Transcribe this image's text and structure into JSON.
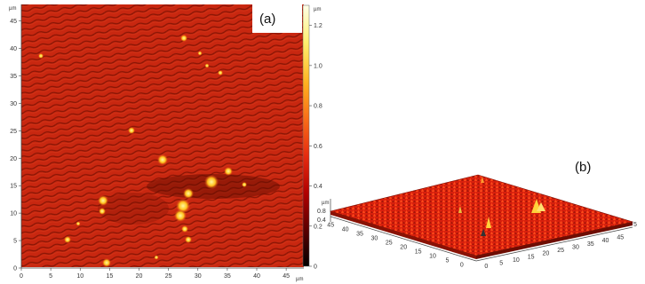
{
  "panel_a": {
    "label": "(a)",
    "y_ticks": [
      "0",
      "5",
      "10",
      "15",
      "20",
      "25",
      "30",
      "35",
      "40",
      "45"
    ],
    "x_ticks": [
      "0",
      "5",
      "10",
      "15",
      "20",
      "25",
      "30",
      "35",
      "40",
      "45"
    ],
    "x_unit": "µm",
    "y_unit": "µm",
    "colorbar": {
      "unit": "µm",
      "ticks": [
        "0",
        "0.2",
        "0.4",
        "0.6",
        "0.8",
        "1.0",
        "1.2"
      ],
      "colors": [
        "#000000",
        "#5a0000",
        "#b00000",
        "#e52b10",
        "#f86b18",
        "#ffb020",
        "#fff070",
        "#ffffe8"
      ]
    }
  },
  "panel_b": {
    "label": "(b)",
    "z_unit": "µm",
    "z_ticks": [
      "0.8",
      "0.4"
    ],
    "left_axis_ticks": [
      "45",
      "40",
      "35",
      "30",
      "25",
      "20",
      "15",
      "10",
      "5",
      "0"
    ],
    "right_axis_ticks": [
      "0",
      "5",
      "10",
      "15",
      "20",
      "25",
      "30",
      "35",
      "40",
      "45"
    ],
    "right_axis_end": "5"
  },
  "colors": {
    "surface_red": "#d42a10",
    "surface_dark": "#8a1205",
    "highlight": "#ffd23a"
  }
}
